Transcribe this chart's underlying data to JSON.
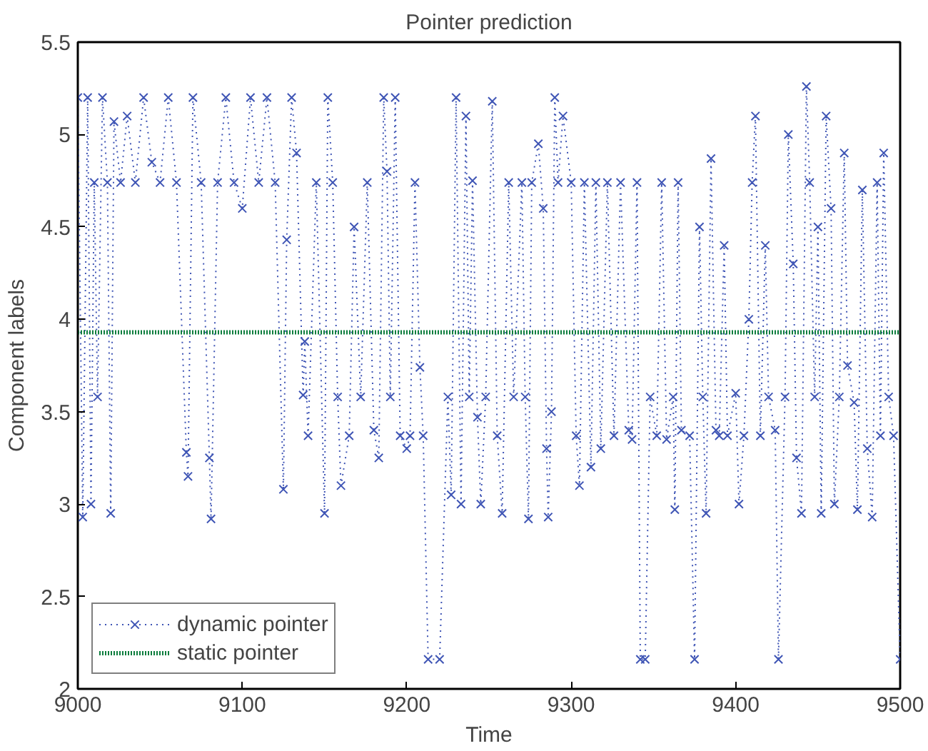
{
  "chart_data": {
    "type": "line",
    "title": "Pointer prediction",
    "xlabel": "Time",
    "ylabel": "Component labels",
    "xlim": [
      9000,
      9500
    ],
    "xticks": [
      9000,
      9100,
      9200,
      9300,
      9400,
      9500
    ],
    "ylim": [
      2,
      5.5
    ],
    "yticks": [
      2,
      2.5,
      3,
      3.5,
      4,
      4.5,
      5,
      5.5
    ],
    "grid": false,
    "legend": "bottom left",
    "series": [
      {
        "name": "dynamic pointer",
        "color": "#3f55b5",
        "marker": "cross",
        "line_style": "dotted",
        "x": [
          9000,
          9003,
          9006,
          9008,
          9010,
          9012,
          9015,
          9018,
          9020,
          9022,
          9026,
          9030,
          9035,
          9040,
          9045,
          9050,
          9055,
          9060,
          9066,
          9067,
          9070,
          9075,
          9080,
          9081,
          9085,
          9090,
          9095,
          9100,
          9105,
          9110,
          9115,
          9120,
          9125,
          9127,
          9130,
          9133,
          9137,
          9138,
          9140,
          9145,
          9150,
          9152,
          9155,
          9158,
          9160,
          9165,
          9168,
          9172,
          9176,
          9180,
          9183,
          9186,
          9188,
          9190,
          9193,
          9196,
          9200,
          9202,
          9205,
          9208,
          9210,
          9213,
          9220,
          9225,
          9227,
          9230,
          9233,
          9236,
          9238,
          9240,
          9243,
          9245,
          9248,
          9252,
          9255,
          9258,
          9262,
          9265,
          9270,
          9272,
          9274,
          9276,
          9280,
          9283,
          9285,
          9286,
          9288,
          9290,
          9292,
          9295,
          9300,
          9303,
          9305,
          9308,
          9312,
          9315,
          9318,
          9322,
          9326,
          9330,
          9335,
          9337,
          9340,
          9342,
          9345,
          9348,
          9352,
          9355,
          9358,
          9362,
          9363,
          9365,
          9367,
          9372,
          9375,
          9378,
          9380,
          9382,
          9385,
          9388,
          9390,
          9393,
          9395,
          9400,
          9402,
          9405,
          9408,
          9410,
          9412,
          9415,
          9418,
          9420,
          9424,
          9426,
          9430,
          9432,
          9435,
          9437,
          9440,
          9443,
          9445,
          9448,
          9450,
          9452,
          9455,
          9458,
          9460,
          9463,
          9466,
          9468,
          9472,
          9474,
          9477,
          9480,
          9483,
          9486,
          9488,
          9490,
          9493,
          9496,
          9500
        ],
        "values": [
          5.2,
          2.93,
          5.2,
          3.0,
          4.74,
          3.58,
          5.2,
          4.74,
          2.95,
          5.07,
          4.74,
          5.1,
          4.74,
          5.2,
          4.85,
          4.74,
          5.2,
          4.74,
          3.28,
          3.15,
          5.2,
          4.74,
          3.25,
          2.92,
          4.74,
          5.2,
          4.74,
          4.6,
          5.2,
          4.74,
          5.2,
          4.74,
          3.08,
          4.43,
          5.2,
          4.9,
          3.59,
          3.88,
          3.37,
          4.74,
          2.95,
          5.2,
          4.74,
          3.58,
          3.1,
          3.37,
          4.5,
          3.58,
          4.74,
          3.4,
          3.25,
          5.2,
          4.8,
          3.58,
          5.2,
          3.37,
          3.3,
          3.37,
          4.74,
          3.74,
          3.37,
          2.16,
          2.16,
          3.58,
          3.05,
          5.2,
          3.0,
          5.1,
          3.58,
          4.75,
          3.47,
          3.0,
          3.58,
          5.18,
          3.37,
          2.95,
          4.74,
          3.58,
          4.74,
          3.58,
          2.92,
          4.74,
          4.95,
          4.6,
          3.3,
          2.93,
          3.5,
          5.2,
          4.74,
          5.1,
          4.74,
          3.37,
          3.1,
          4.74,
          3.2,
          4.74,
          3.3,
          4.74,
          3.37,
          4.74,
          3.4,
          3.35,
          4.74,
          2.16,
          2.16,
          3.58,
          3.37,
          4.74,
          3.35,
          3.58,
          2.97,
          4.74,
          3.4,
          3.37,
          2.16,
          4.5,
          3.58,
          2.95,
          4.87,
          3.4,
          3.37,
          4.4,
          3.37,
          3.6,
          3.0,
          3.37,
          4.0,
          4.74,
          5.1,
          3.37,
          4.4,
          3.58,
          3.4,
          2.16,
          3.58,
          5.0,
          4.3,
          3.25,
          2.95,
          5.26,
          4.74,
          3.58,
          4.5,
          2.95,
          5.1,
          4.6,
          3.0,
          3.58,
          4.9,
          3.75,
          3.55,
          2.97,
          4.7,
          3.3,
          2.93,
          4.74,
          3.37,
          4.9,
          3.58,
          3.37,
          2.16
        ]
      },
      {
        "name": "static pointer",
        "color": "#0e7e3e",
        "line_style": "dotted",
        "x": [
          9000,
          9500
        ],
        "values": [
          3.93,
          3.93
        ]
      }
    ]
  }
}
